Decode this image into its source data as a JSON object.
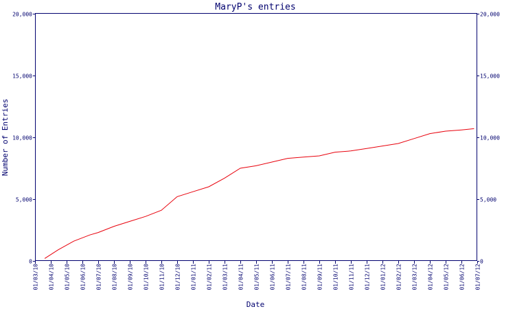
{
  "colors": {
    "axis": "#00006e",
    "series": "#e8000b",
    "background": "#ffffff"
  },
  "chart_data": {
    "type": "line",
    "title": "MaryP's entries",
    "xlabel": "Date",
    "ylabel": "Number of Entries",
    "ylim": [
      0,
      20000
    ],
    "yticks": [
      0,
      5000,
      10000,
      15000,
      20000
    ],
    "ytick_labels": [
      "0",
      "5,000",
      "10,000",
      "15,000",
      "20,000"
    ],
    "grid": false,
    "xtick_labels": [
      "01/03/10",
      "01/04/10",
      "01/05/10",
      "01/06/10",
      "01/07/10",
      "01/08/10",
      "01/09/10",
      "01/10/10",
      "01/11/10",
      "01/12/10",
      "01/01/11",
      "01/02/11",
      "01/03/11",
      "01/04/11",
      "01/05/11",
      "01/06/11",
      "01/07/11",
      "01/08/11",
      "01/09/11",
      "01/10/11",
      "01/11/11",
      "01/12/11",
      "01/01/12",
      "01/02/12",
      "01/03/12",
      "01/04/12",
      "01/05/12",
      "01/06/12",
      "01/07/12"
    ],
    "series": [
      {
        "x": [
          "2010-03-20",
          "2010-04-15",
          "2010-05-15",
          "2010-06-15",
          "2010-07-01",
          "2010-08-01",
          "2010-09-01",
          "2010-10-01",
          "2010-11-01",
          "2010-12-01",
          "2011-01-01",
          "2011-02-01",
          "2011-03-01",
          "2011-04-01",
          "2011-05-01",
          "2011-06-01",
          "2011-07-01",
          "2011-08-01",
          "2011-09-01",
          "2011-10-01",
          "2011-11-01",
          "2011-12-01",
          "2012-01-01",
          "2012-02-01",
          "2012-03-01",
          "2012-04-01",
          "2012-05-01",
          "2012-06-01",
          "2012-06-25"
        ],
        "values": [
          200,
          900,
          1600,
          2100,
          2300,
          2800,
          3200,
          3600,
          4100,
          5200,
          5600,
          6000,
          6700,
          7500,
          7700,
          8000,
          8300,
          8400,
          8500,
          8800,
          8900,
          9100,
          9300,
          9500,
          9900,
          10300,
          10500,
          10600,
          10700
        ]
      }
    ]
  }
}
